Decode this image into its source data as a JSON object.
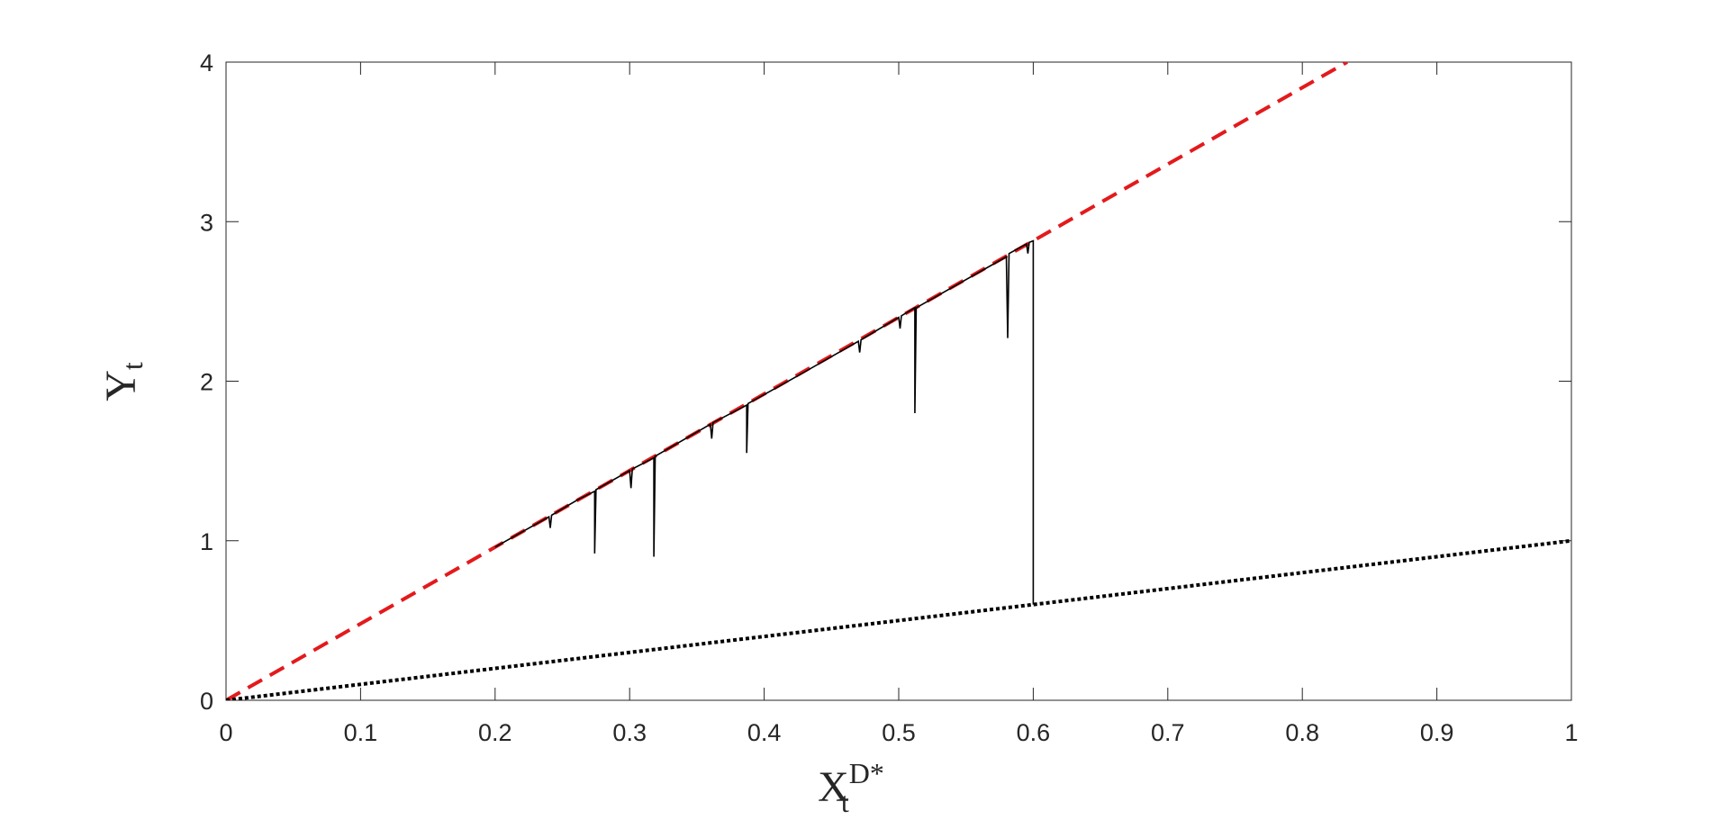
{
  "chart_data": {
    "type": "line",
    "xlabel": {
      "main": "X",
      "sub": "t",
      "sup": "D*"
    },
    "ylabel": {
      "main": "Y",
      "sub": "t"
    },
    "xlim": [
      0,
      1
    ],
    "ylim": [
      0,
      4
    ],
    "xticks": [
      0,
      0.1,
      0.2,
      0.3,
      0.4,
      0.5,
      0.6,
      0.7,
      0.8,
      0.9,
      1
    ],
    "yticks": [
      0,
      1,
      2,
      3,
      4
    ],
    "grid": false,
    "series": [
      {
        "color": "#e31a1c",
        "dash": "dashed",
        "width": 4,
        "x": [
          0,
          0.8333
        ],
        "values": [
          0,
          4
        ]
      },
      {
        "color": "#000000",
        "dash": "dotted",
        "width": 4,
        "x": [
          0,
          1
        ],
        "values": [
          0,
          1
        ]
      },
      {
        "color": "#000000",
        "dash": "solid",
        "width": 1.6,
        "x": [
          0.2,
          0.24,
          0.241,
          0.242,
          0.262,
          0.274,
          0.274,
          0.275,
          0.3,
          0.301,
          0.302,
          0.318,
          0.318,
          0.319,
          0.36,
          0.361,
          0.362,
          0.387,
          0.387,
          0.388,
          0.42,
          0.47,
          0.471,
          0.472,
          0.5,
          0.501,
          0.502,
          0.512,
          0.512,
          0.513,
          0.58,
          0.581,
          0.582,
          0.595,
          0.596,
          0.597,
          0.6,
          0.6
        ],
        "values": [
          0.96,
          1.15,
          1.08,
          1.16,
          1.26,
          1.31,
          0.92,
          1.32,
          1.44,
          1.33,
          1.45,
          1.52,
          0.9,
          1.53,
          1.73,
          1.64,
          1.74,
          1.85,
          1.55,
          1.86,
          2.01,
          2.25,
          2.18,
          2.26,
          2.4,
          2.33,
          2.41,
          2.46,
          1.8,
          2.46,
          2.78,
          2.27,
          2.8,
          2.86,
          2.8,
          2.87,
          2.88,
          0.6
        ]
      }
    ]
  }
}
